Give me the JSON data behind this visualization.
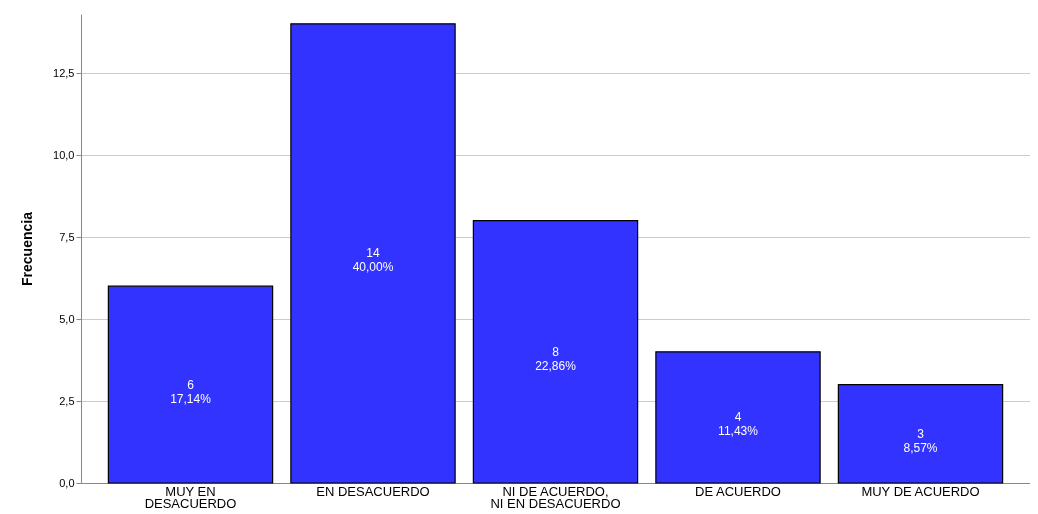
{
  "chart_data": {
    "type": "bar",
    "ylabel": "Frecuencia",
    "categories": [
      "MUY EN DESACUERDO",
      "EN DESACUERDO",
      "NI DE ACUERDO, NI EN DESACUERDO",
      "DE ACUERDO",
      "MUY DE ACUERDO"
    ],
    "values": [
      6,
      14,
      8,
      4,
      3
    ],
    "value_labels": [
      "6\n17,14%",
      "14\n40,00%",
      "8\n22,86%",
      "4\n11,43%",
      "3\n8,57%"
    ],
    "color": "#3333ff",
    "ylim": [
      0,
      14.3
    ],
    "yticks": [
      {
        "value": 0,
        "label": "0,0"
      },
      {
        "value": 2.5,
        "label": "2,5"
      },
      {
        "value": 5,
        "label": "5,0"
      },
      {
        "value": 7.5,
        "label": "7,5"
      },
      {
        "value": 10,
        "label": "10,0"
      },
      {
        "value": 12.5,
        "label": "12,5"
      }
    ],
    "grid": "y"
  }
}
